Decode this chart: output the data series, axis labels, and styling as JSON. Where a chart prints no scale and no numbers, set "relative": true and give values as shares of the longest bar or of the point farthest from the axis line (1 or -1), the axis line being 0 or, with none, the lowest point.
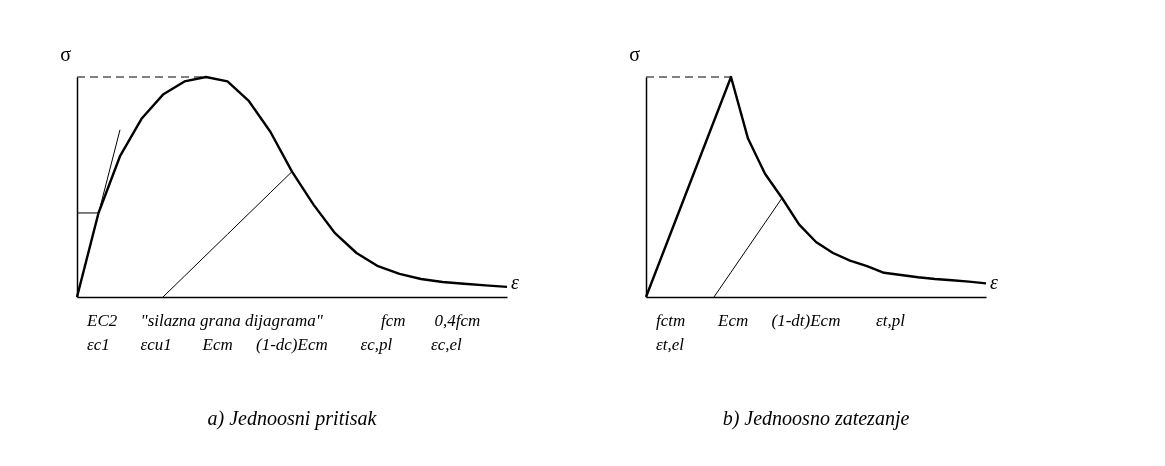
{
  "chart_data": [
    {
      "type": "line",
      "relative": true,
      "title": "a) Jednoosni pritisak",
      "xlabel": "ε",
      "ylabel": "σ",
      "categories": [
        null,
        null,
        null,
        null,
        null,
        null,
        null,
        null,
        null,
        null,
        null,
        null,
        null,
        null,
        null,
        null,
        null,
        null,
        null,
        null,
        null
      ],
      "series": [
        {
          "color": "#000000",
          "line_style": "solid",
          "values": [
            0,
            0.382,
            0.64,
            0.81,
            0.92,
            0.98,
            1.0,
            0.98,
            0.89,
            0.75,
            0.57,
            0.42,
            0.29,
            0.2,
            0.14,
            0.105,
            0.082,
            0.068,
            0.06,
            0.053,
            0.046
          ]
        },
        {
          "color": "#000000",
          "line_style": "solid",
          "values": [
            0,
            0.38,
            0.76,
            null,
            null,
            null,
            null,
            null,
            null,
            null,
            null,
            null,
            null,
            null,
            null,
            null,
            null,
            null,
            null,
            null,
            null
          ]
        },
        {
          "color": "#000000",
          "line_style": "dashed",
          "values": [
            1.0,
            1.0,
            1.0,
            1.0,
            1.0,
            1.0,
            1.0,
            null,
            null,
            null,
            null,
            null,
            null,
            null,
            null,
            null,
            null,
            null,
            null,
            null,
            null
          ]
        },
        {
          "color": "#000000",
          "line_style": "solid",
          "values": [
            0.382,
            0.382,
            null,
            null,
            null,
            null,
            null,
            null,
            null,
            null,
            null,
            null,
            null,
            null,
            null,
            null,
            null,
            null,
            null,
            null,
            null
          ]
        },
        {
          "color": "#000000",
          "line_style": "solid",
          "values": [
            null,
            null,
            null,
            null,
            0,
            0.095,
            0.19,
            0.285,
            0.38,
            0.475,
            0.57,
            null,
            null,
            null,
            null,
            null,
            null,
            null,
            null,
            null,
            null
          ]
        }
      ],
      "annotations": [
        "EC2",
        "\"silazna grana dijagrama\"",
        "fcm",
        "0,4fcm",
        "εc1",
        "εcu1",
        "Ecm",
        "(1-dc)Ecm",
        "εc,pl",
        "εc,el"
      ]
    },
    {
      "type": "line",
      "relative": true,
      "title": "b) Jednoosno zatezanje",
      "xlabel": "ε",
      "ylabel": "σ",
      "categories": [
        null,
        null,
        null,
        null,
        null,
        null,
        null,
        null,
        null,
        null,
        null,
        null,
        null,
        null,
        null,
        null,
        null,
        null,
        null,
        null,
        null
      ],
      "series": [
        {
          "color": "#000000",
          "line_style": "solid",
          "values": [
            0,
            0.2,
            0.4,
            0.6,
            0.8,
            1.0,
            0.72,
            0.56,
            0.45,
            0.33,
            0.25,
            0.2,
            0.165,
            0.14,
            0.11,
            0.1,
            0.09,
            0.082,
            0.076,
            0.07,
            0.062
          ]
        },
        {
          "color": "#000000",
          "line_style": "dashed",
          "values": [
            1.0,
            1.0,
            1.0,
            1.0,
            1.0,
            1.0,
            null,
            null,
            null,
            null,
            null,
            null,
            null,
            null,
            null,
            null,
            null,
            null,
            null,
            null,
            null
          ]
        },
        {
          "color": "#000000",
          "line_style": "solid",
          "values": [
            null,
            null,
            null,
            null,
            0,
            0.1125,
            0.225,
            0.3375,
            0.45,
            null,
            null,
            null,
            null,
            null,
            null,
            null,
            null,
            null,
            null,
            null,
            null
          ]
        }
      ],
      "annotations": [
        "fctm",
        "Ecm",
        "(1-dt)Ecm",
        "εt,pl",
        "εt,el"
      ]
    }
  ]
}
